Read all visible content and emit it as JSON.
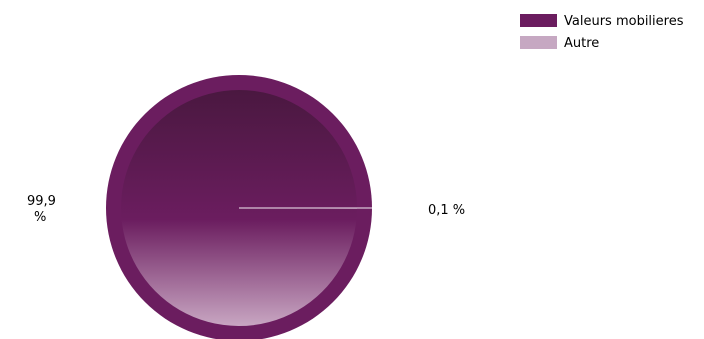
{
  "chart_data": {
    "type": "pie",
    "title": "",
    "categories": [
      "Valeurs mobilieres",
      "Autre"
    ],
    "values": [
      99.9,
      0.1
    ],
    "value_labels": [
      "99,9 %",
      "0,1 %"
    ],
    "colors": [
      "#6b1d5f",
      "#c6a8c2"
    ],
    "legend": {
      "position": "top-right",
      "entries": [
        {
          "label": "Valeurs mobilieres",
          "color": "#6b1d5f"
        },
        {
          "label": "Autre",
          "color": "#c6a8c2"
        }
      ]
    }
  }
}
